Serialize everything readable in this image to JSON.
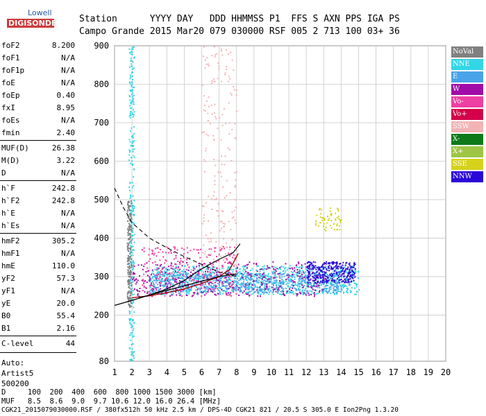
{
  "logo": {
    "top_text": "Lowell",
    "bottom_text": "DIGISONDE"
  },
  "header": {
    "line1": "Station      YYYY DAY   DDD HHMMSS P1  FFS S AXN PPS IGA PS",
    "line2": "Campo Grande 2015 Mar20 079 030000 RSF 005 2 713 100 03+ 36"
  },
  "params": [
    {
      "label": "foF2",
      "value": "8.200"
    },
    {
      "label": "foF1",
      "value": "N/A"
    },
    {
      "label": "foF1p",
      "value": "N/A"
    },
    {
      "label": "foE",
      "value": "N/A"
    },
    {
      "label": "foEp",
      "value": "0.40"
    },
    {
      "label": "fxI",
      "value": "8.95"
    },
    {
      "label": "foEs",
      "value": "N/A"
    },
    {
      "label": "fmin",
      "value": "2.40"
    },
    {
      "label": "MUF(D)",
      "value": "26.38"
    },
    {
      "label": "M(D)",
      "value": "3.22"
    },
    {
      "label": "D",
      "value": "N/A"
    },
    {
      "label": "h`F",
      "value": "242.8"
    },
    {
      "label": "h`F2",
      "value": "242.8"
    },
    {
      "label": "h`E",
      "value": "N/A"
    },
    {
      "label": "h`Es",
      "value": "N/A"
    },
    {
      "label": "hmF2",
      "value": "305.2"
    },
    {
      "label": "hmF1",
      "value": "N/A"
    },
    {
      "label": "hmE",
      "value": "110.0"
    },
    {
      "label": "yF2",
      "value": "57.3"
    },
    {
      "label": "yF1",
      "value": "N/A"
    },
    {
      "label": "yE",
      "value": "20.0"
    },
    {
      "label": "B0",
      "value": "55.4"
    },
    {
      "label": "B1",
      "value": "2.16"
    },
    {
      "label": "C-level",
      "value": "44"
    }
  ],
  "auto": {
    "line1": "Auto:",
    "line2": "Artist5",
    "line3": "500200"
  },
  "legend": [
    {
      "label": "NoVal",
      "color": "#808080"
    },
    {
      "label": "NNE",
      "color": "#33d6e6"
    },
    {
      "label": "E",
      "color": "#4aa3e8"
    },
    {
      "label": "W",
      "color": "#a10aa8"
    },
    {
      "label": "Vo-",
      "color": "#ee3fa3"
    },
    {
      "label": "Vo+",
      "color": "#d4004a"
    },
    {
      "label": "SSW",
      "color": "#f2b3b3"
    },
    {
      "label": "X-",
      "color": "#0f7a1a"
    },
    {
      "label": "X+",
      "color": "#9dc644"
    },
    {
      "label": "SSE",
      "color": "#d6d21c"
    },
    {
      "label": "NNW",
      "color": "#2a08d8"
    }
  ],
  "chart_data": {
    "type": "scatter",
    "x_ticks": [
      1,
      2,
      3,
      4,
      5,
      6,
      7,
      8,
      9,
      10,
      11,
      12,
      13,
      14,
      15,
      16,
      17,
      18,
      19,
      20
    ],
    "y_ticks": [
      80,
      200,
      300,
      400,
      500,
      600,
      700,
      800,
      900
    ],
    "xlim": [
      1,
      20
    ],
    "ylim": [
      80,
      900
    ],
    "x_unit": "MHz",
    "y_unit": "km",
    "grid": true,
    "traces": [
      {
        "name": "o-trace",
        "points": [
          [
            2.0,
            245
          ],
          [
            3,
            250
          ],
          [
            4,
            258
          ],
          [
            5,
            268
          ],
          [
            6,
            282
          ],
          [
            7,
            300
          ],
          [
            7.6,
            318
          ],
          [
            8.1,
            360
          ]
        ]
      },
      {
        "name": "x-trace",
        "points": [
          [
            2.4,
            245
          ],
          [
            3,
            252
          ],
          [
            4,
            268
          ],
          [
            5,
            290
          ],
          [
            6,
            320
          ],
          [
            7,
            345
          ],
          [
            7.8,
            362
          ],
          [
            8.2,
            385
          ]
        ]
      },
      {
        "name": "profile",
        "points": [
          [
            1.0,
            225
          ],
          [
            2,
            238
          ],
          [
            3,
            252
          ],
          [
            4,
            264
          ],
          [
            5,
            276
          ],
          [
            6,
            288
          ],
          [
            7,
            300
          ],
          [
            8.0,
            307
          ]
        ]
      },
      {
        "name": "dashed-profile",
        "points": [
          [
            1.0,
            530
          ],
          [
            1.5,
            480
          ],
          [
            2,
            440
          ],
          [
            3,
            400
          ],
          [
            4,
            375
          ],
          [
            5,
            352
          ],
          [
            6,
            332
          ],
          [
            7,
            312
          ],
          [
            8.0,
            300
          ]
        ]
      }
    ],
    "echo_clusters": [
      {
        "series": "NNE",
        "color": "#33d6e6",
        "fmin": 1.8,
        "fmax": 2.1,
        "hmin": 80,
        "hmax": 900,
        "density": 300
      },
      {
        "series": "NNE",
        "color": "#33d6e6",
        "fmin": 3,
        "fmax": 15,
        "hmin": 255,
        "hmax": 330,
        "density": 900
      },
      {
        "series": "E",
        "color": "#4aa3e8",
        "fmin": 3,
        "fmax": 14,
        "hmin": 260,
        "hmax": 310,
        "density": 700
      },
      {
        "series": "W",
        "color": "#a10aa8",
        "fmin": 2,
        "fmax": 13,
        "hmin": 250,
        "hmax": 340,
        "density": 400
      },
      {
        "series": "NNW",
        "color": "#2a08d8",
        "fmin": 12,
        "fmax": 14.8,
        "hmin": 285,
        "hmax": 340,
        "density": 300
      },
      {
        "series": "SSW",
        "color": "#f2b3b3",
        "fmin": 6,
        "fmax": 8,
        "hmin": 300,
        "hmax": 900,
        "density": 200
      },
      {
        "series": "SSE",
        "color": "#d6d21c",
        "fmin": 12.5,
        "fmax": 14,
        "hmin": 420,
        "hmax": 480,
        "density": 60
      },
      {
        "series": "Vo-",
        "color": "#ee3fa3",
        "fmin": 2.5,
        "fmax": 8,
        "hmin": 250,
        "hmax": 380,
        "density": 250
      },
      {
        "series": "NoVal",
        "color": "#808080",
        "fmin": 1.7,
        "fmax": 1.95,
        "hmin": 220,
        "hmax": 500,
        "density": 200
      }
    ]
  },
  "footer": {
    "row1": "D     100  200  400  600  800 1000 1500 3000 [km]",
    "row2": "MUF   8.5  8.6  9.0  9.7 10.6 12.0 16.0 26.4 [MHz]",
    "row3": "CGK21_2015079030000.RSF / 380fx512h 50 kHz 2.5 km / DPS-4D CGK21 821 / 20.5 S 305.0 E Ion2Png 1.3.20"
  }
}
